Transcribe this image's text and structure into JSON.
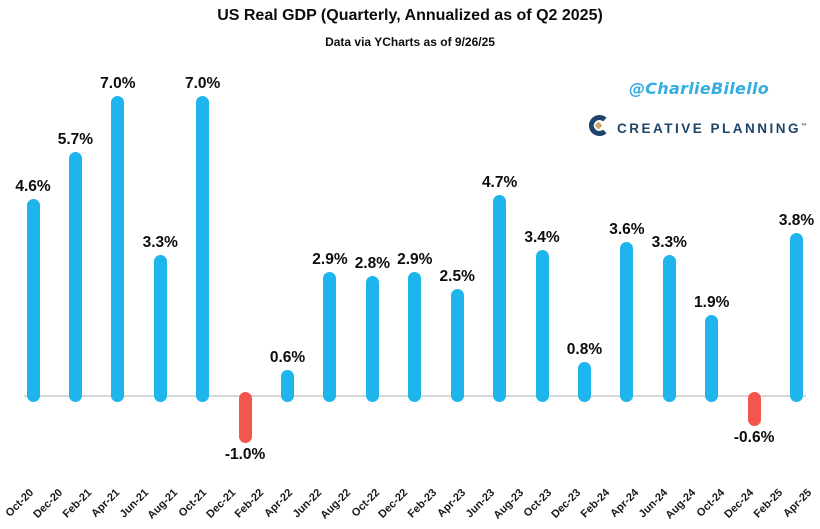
{
  "attribution": {
    "handle": "@CharlieBilello",
    "brand_name": "CREATIVE PLANNING",
    "brand_trademark": "™"
  },
  "colors": {
    "positive_bar": "#1EB5EC",
    "negative_bar": "#F4564E",
    "axis_line": "#D8D8D8",
    "handle_text": "#36ADE2",
    "brand_navy": "#1D4569",
    "brand_gold": "#C9A873",
    "text": "#0d0d0d"
  },
  "chart_data": {
    "type": "bar",
    "title": "US Real GDP (Quarterly, Annualized as of Q2 2025)",
    "subtitle": "Data via YCharts as of 9/26/25",
    "unit": "%",
    "baseline": 0,
    "ylim": [
      -1.8,
      7.9
    ],
    "grid": false,
    "legend": "none",
    "values": [
      4.6,
      5.7,
      7.0,
      3.3,
      7.0,
      -1.0,
      0.6,
      2.9,
      2.8,
      2.9,
      2.5,
      4.7,
      3.4,
      0.8,
      3.6,
      3.3,
      1.9,
      -0.6,
      3.8
    ],
    "bar_labels": [
      "4.6%",
      "5.7%",
      "7.0%",
      "3.3%",
      "7.0%",
      "-1.0%",
      "0.6%",
      "2.9%",
      "2.8%",
      "2.9%",
      "2.5%",
      "4.7%",
      "3.4%",
      "0.8%",
      "3.6%",
      "3.3%",
      "1.9%",
      "-0.6%",
      "3.8%"
    ],
    "x_tick_labels": [
      "Oct-20",
      "Dec-20",
      "Feb-21",
      "Apr-21",
      "Jun-21",
      "Aug-21",
      "Oct-21",
      "Dec-21",
      "Feb-22",
      "Apr-22",
      "Jun-22",
      "Aug-22",
      "Oct-22",
      "Dec-22",
      "Feb-23",
      "Apr-23",
      "Jun-23",
      "Aug-23",
      "Oct-23",
      "Dec-23",
      "Feb-24",
      "Apr-24",
      "Jun-24",
      "Aug-24",
      "Oct-24",
      "Dec-24",
      "Feb-25",
      "Apr-25"
    ]
  }
}
